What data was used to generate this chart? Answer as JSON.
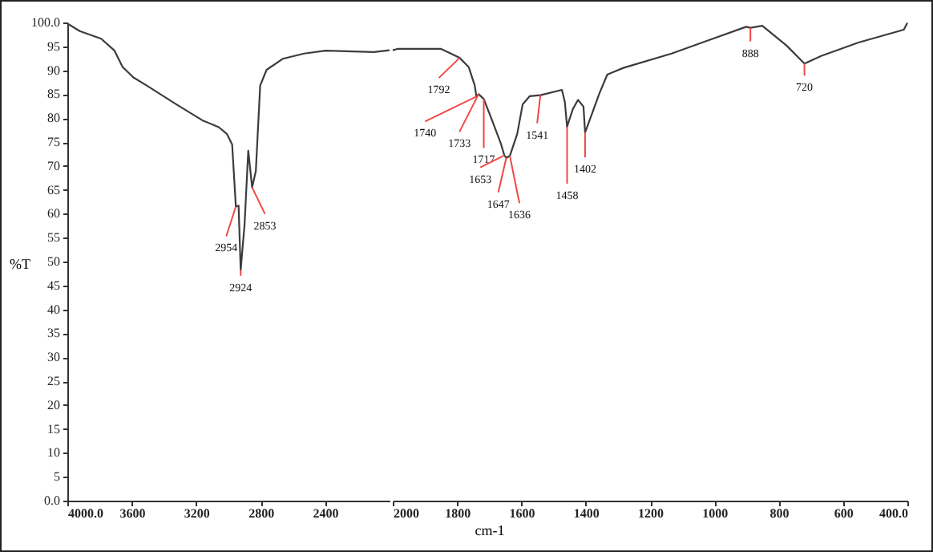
{
  "chart_data": [
    {
      "type": "line",
      "ylabel": "%T",
      "x": [
        4000,
        3923,
        3790,
        3707,
        3657,
        3590,
        3507,
        3325,
        3160,
        3060,
        3010,
        2977,
        2954,
        2937,
        2924,
        2900,
        2877,
        2853,
        2830,
        2803,
        2763,
        2663,
        2530,
        2397,
        2098,
        2000
      ],
      "series": [
        {
          "color": "#3c3c3c",
          "values": [
            99.8,
            98.2,
            96.6,
            94.1,
            90.7,
            88.5,
            86.8,
            82.9,
            79.5,
            78.1,
            76.7,
            74.5,
            61.5,
            61.7,
            48.2,
            57.7,
            73.2,
            65.5,
            68.9,
            86.8,
            90.1,
            92.4,
            93.5,
            94.1,
            93.8,
            94.2
          ]
        }
      ],
      "xlim": [
        4000,
        2000
      ],
      "xticks": [
        {
          "value": 4000,
          "label": "4000.0"
        },
        3600,
        3200,
        2800,
        2400
      ],
      "ylim": [
        0,
        100
      ],
      "yticks": [
        {
          "value": 0,
          "label": "0.0"
        },
        5,
        10,
        15,
        20,
        25,
        30,
        35,
        40,
        45,
        50,
        55,
        60,
        65,
        70,
        75,
        80,
        85,
        90,
        95,
        {
          "value": 100,
          "label": "100.0"
        }
      ],
      "annotations": [
        {
          "text": "2954",
          "x": 2954,
          "y": 61.5
        },
        {
          "text": "2924",
          "x": 2924,
          "y": 48.2
        },
        {
          "text": "2853",
          "x": 2853,
          "y": 65.5
        }
      ]
    },
    {
      "type": "line",
      "xlabel": "cm-1",
      "tick_labels": "x",
      "x": [
        2000,
        1983,
        1870,
        1851,
        1792,
        1764,
        1745,
        1740,
        1733,
        1717,
        1691,
        1663,
        1653,
        1647,
        1636,
        1613,
        1596,
        1574,
        1541,
        1474,
        1465,
        1458,
        1440,
        1424,
        1407,
        1402,
        1379,
        1358,
        1333,
        1283,
        1133,
        1017,
        901,
        888,
        851,
        776,
        720,
        668,
        552,
        411,
        400
      ],
      "series": [
        {
          "color": "#3c3c3c",
          "values": [
            94.2,
            94.5,
            94.5,
            94.5,
            92.6,
            90.7,
            86.8,
            84.5,
            85,
            84,
            79.5,
            74.5,
            72.2,
            71.7,
            72.1,
            76.7,
            82.9,
            84.6,
            84.8,
            85.9,
            83.4,
            78.2,
            81.9,
            83.8,
            82.4,
            77,
            81.2,
            85.1,
            89.1,
            90.5,
            93.5,
            96.3,
            99.1,
            98.9,
            99.3,
            95.2,
            91.4,
            93,
            95.8,
            98.5,
            99.9
          ]
        }
      ],
      "xlim": [
        2000,
        400
      ],
      "xticks": [
        2000,
        1800,
        1600,
        1400,
        1200,
        1000,
        800,
        600,
        {
          "value": 400,
          "label": "400.0"
        }
      ],
      "ylim": [
        0,
        100
      ],
      "annotations": [
        {
          "text": "1792",
          "x": 1792,
          "y": 92.6
        },
        {
          "text": "1740",
          "x": 1740,
          "y": 84.5
        },
        {
          "text": "1733",
          "x": 1733,
          "y": 85
        },
        {
          "text": "1717",
          "x": 1717,
          "y": 84
        },
        {
          "text": "1653",
          "x": 1653,
          "y": 72.2
        },
        {
          "text": "1647",
          "x": 1647,
          "y": 71.7
        },
        {
          "text": "1636",
          "x": 1636,
          "y": 72.1
        },
        {
          "text": "1541",
          "x": 1541,
          "y": 84.8
        },
        {
          "text": "1458",
          "x": 1458,
          "y": 78.2
        },
        {
          "text": "1402",
          "x": 1402,
          "y": 77
        },
        {
          "text": "888",
          "x": 888,
          "y": 98.9
        },
        {
          "text": "720",
          "x": 720,
          "y": 91.4
        }
      ]
    }
  ]
}
